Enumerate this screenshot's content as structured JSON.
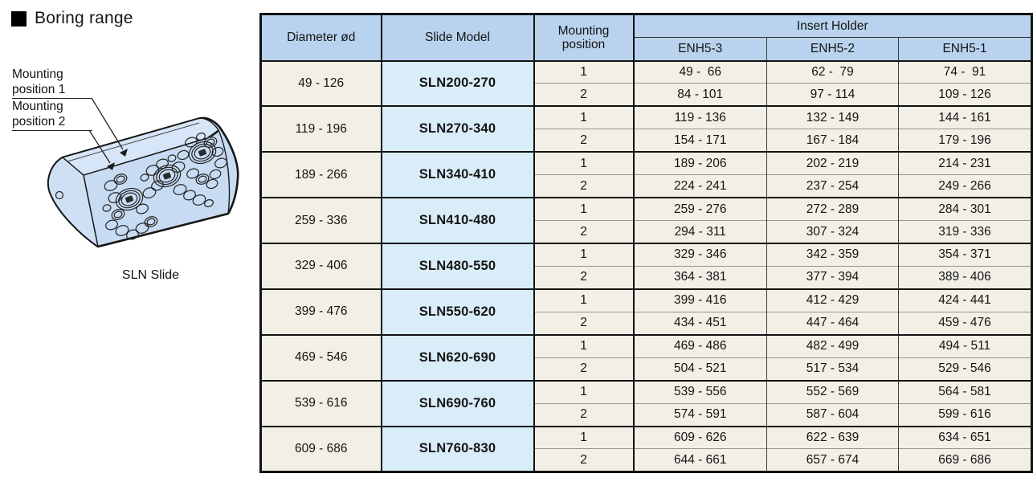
{
  "title": "Boring range",
  "illustration": {
    "caption": "SLN Slide",
    "callout1": "Mounting position 1",
    "callout2": "Mounting position 2"
  },
  "table": {
    "col_diameter": "Diameter ød",
    "col_slide_model": "Slide Model",
    "col_mounting_position": "Mounting position",
    "col_insert_holder": "Insert Holder",
    "insert_cols": [
      "ENH5-3",
      "ENH5-2",
      "ENH5-1"
    ],
    "groups": [
      {
        "diameter": "49 - 126",
        "model": "SLN200-270",
        "rows": [
          {
            "pos": "1",
            "v": [
              "49 -  66",
              "62 -  79",
              "74 -  91"
            ]
          },
          {
            "pos": "2",
            "v": [
              "84 - 101",
              "97 - 114",
              "109 - 126"
            ]
          }
        ]
      },
      {
        "diameter": "119 - 196",
        "model": "SLN270-340",
        "rows": [
          {
            "pos": "1",
            "v": [
              "119 - 136",
              "132 - 149",
              "144 - 161"
            ]
          },
          {
            "pos": "2",
            "v": [
              "154 - 171",
              "167 - 184",
              "179 - 196"
            ]
          }
        ]
      },
      {
        "diameter": "189 - 266",
        "model": "SLN340-410",
        "rows": [
          {
            "pos": "1",
            "v": [
              "189 - 206",
              "202 - 219",
              "214 - 231"
            ]
          },
          {
            "pos": "2",
            "v": [
              "224 - 241",
              "237 - 254",
              "249 - 266"
            ]
          }
        ]
      },
      {
        "diameter": "259 - 336",
        "model": "SLN410-480",
        "rows": [
          {
            "pos": "1",
            "v": [
              "259 - 276",
              "272 - 289",
              "284 - 301"
            ]
          },
          {
            "pos": "2",
            "v": [
              "294 - 311",
              "307 - 324",
              "319 - 336"
            ]
          }
        ]
      },
      {
        "diameter": "329 - 406",
        "model": "SLN480-550",
        "rows": [
          {
            "pos": "1",
            "v": [
              "329 - 346",
              "342 - 359",
              "354 - 371"
            ]
          },
          {
            "pos": "2",
            "v": [
              "364 - 381",
              "377 - 394",
              "389 - 406"
            ]
          }
        ]
      },
      {
        "diameter": "399 - 476",
        "model": "SLN550-620",
        "rows": [
          {
            "pos": "1",
            "v": [
              "399 - 416",
              "412 - 429",
              "424 - 441"
            ]
          },
          {
            "pos": "2",
            "v": [
              "434 - 451",
              "447 - 464",
              "459 - 476"
            ]
          }
        ]
      },
      {
        "diameter": "469 - 546",
        "model": "SLN620-690",
        "rows": [
          {
            "pos": "1",
            "v": [
              "469 - 486",
              "482 - 499",
              "494 - 511"
            ]
          },
          {
            "pos": "2",
            "v": [
              "504 - 521",
              "517 - 534",
              "529 - 546"
            ]
          }
        ]
      },
      {
        "diameter": "539 - 616",
        "model": "SLN690-760",
        "rows": [
          {
            "pos": "1",
            "v": [
              "539 - 556",
              "552 - 569",
              "564 - 581"
            ]
          },
          {
            "pos": "2",
            "v": [
              "574 - 591",
              "587 - 604",
              "599 - 616"
            ]
          }
        ]
      },
      {
        "diameter": "609 - 686",
        "model": "SLN760-830",
        "rows": [
          {
            "pos": "1",
            "v": [
              "609 - 626",
              "622 - 639",
              "634 - 651"
            ]
          },
          {
            "pos": "2",
            "v": [
              "644 - 661",
              "657 - 674",
              "669 - 686"
            ]
          }
        ]
      }
    ]
  },
  "colors": {
    "header_bg": "#b9d3ee",
    "model_bg": "#d9edf9",
    "cell_bg": "#f2f0e6",
    "block_fill": "#c7dbf2",
    "ink": "#141414"
  }
}
